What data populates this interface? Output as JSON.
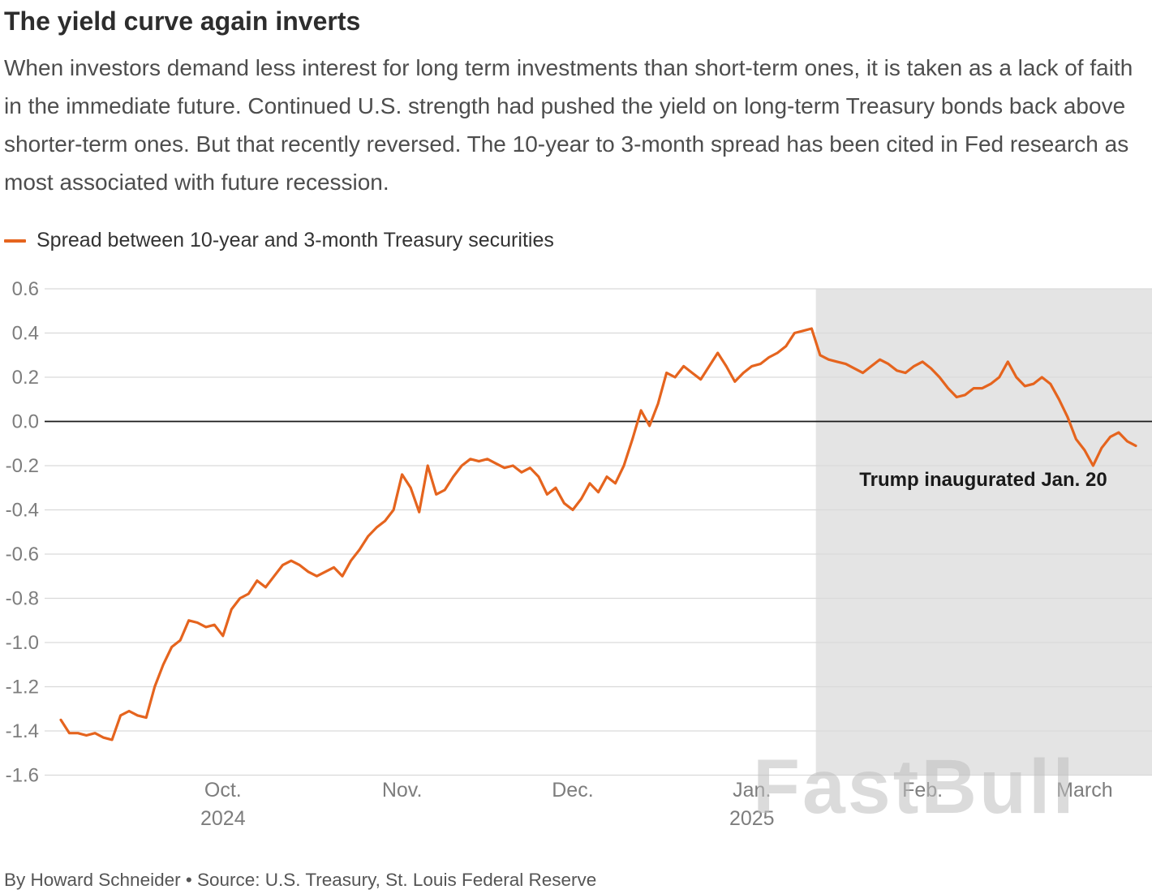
{
  "header": {
    "title": "The yield curve again inverts",
    "description": "When investors demand less interest for long term investments than short-term ones, it is taken as a lack of faith in the immediate future. Continued U.S. strength had pushed the yield on long-term Treasury bonds back above shorter-term ones. But that recently reversed. The 10-year to 3-month spread has been cited in Fed research as most associated with future recession."
  },
  "legend": {
    "label": "Spread between 10-year and 3-month Treasury securities",
    "color": "#E5641E"
  },
  "annotation": {
    "text": "Trump inaugurated Jan. 20"
  },
  "watermark": {
    "text": "FastBull"
  },
  "footer": {
    "text": "By Howard Schneider • Source: U.S. Treasury, St. Louis Federal Reserve"
  },
  "chart_data": {
    "type": "line",
    "title": "The yield curve again inverts",
    "xlabel": "",
    "ylabel": "",
    "ylim": [
      -1.6,
      0.6
    ],
    "grid": true,
    "grid_color": "#d9d9d9",
    "zero_line_color": "#1a1a1a",
    "axis_label_color": "#7d7d7d",
    "y_ticks": [
      "0.6",
      "0.4",
      "0.2",
      "0.0",
      "-0.2",
      "-0.4",
      "-0.6",
      "-0.8",
      "-1.0",
      "-1.2",
      "-1.4",
      "-1.6"
    ],
    "x_ticks": [
      {
        "index": 19,
        "label": "Oct.",
        "year": "2024"
      },
      {
        "index": 40,
        "label": "Nov."
      },
      {
        "index": 60,
        "label": "Dec."
      },
      {
        "index": 81,
        "label": "Jan.",
        "year": "2025"
      },
      {
        "index": 101,
        "label": "Feb."
      },
      {
        "index": 120,
        "label": "March"
      }
    ],
    "shaded_region": {
      "start_index": 88.5,
      "color": "#e4e4e4",
      "label": "Trump inaugurated Jan. 20"
    },
    "series": [
      {
        "name": "Spread between 10-year and 3-month Treasury securities",
        "color": "#E5641E",
        "values": [
          -1.35,
          -1.41,
          -1.41,
          -1.42,
          -1.41,
          -1.43,
          -1.44,
          -1.33,
          -1.31,
          -1.33,
          -1.34,
          -1.2,
          -1.1,
          -1.02,
          -0.99,
          -0.9,
          -0.91,
          -0.93,
          -0.92,
          -0.97,
          -0.85,
          -0.8,
          -0.78,
          -0.72,
          -0.75,
          -0.7,
          -0.65,
          -0.63,
          -0.65,
          -0.68,
          -0.7,
          -0.68,
          -0.66,
          -0.7,
          -0.63,
          -0.58,
          -0.52,
          -0.48,
          -0.45,
          -0.4,
          -0.24,
          -0.3,
          -0.41,
          -0.2,
          -0.33,
          -0.31,
          -0.25,
          -0.2,
          -0.17,
          -0.18,
          -0.17,
          -0.19,
          -0.21,
          -0.2,
          -0.23,
          -0.21,
          -0.25,
          -0.33,
          -0.3,
          -0.37,
          -0.4,
          -0.35,
          -0.28,
          -0.32,
          -0.25,
          -0.28,
          -0.2,
          -0.08,
          0.05,
          -0.02,
          0.08,
          0.22,
          0.2,
          0.25,
          0.22,
          0.19,
          0.25,
          0.31,
          0.25,
          0.18,
          0.22,
          0.25,
          0.26,
          0.29,
          0.31,
          0.34,
          0.4,
          0.41,
          0.42,
          0.3,
          0.28,
          0.27,
          0.26,
          0.24,
          0.22,
          0.25,
          0.28,
          0.26,
          0.23,
          0.22,
          0.25,
          0.27,
          0.24,
          0.2,
          0.15,
          0.11,
          0.12,
          0.15,
          0.15,
          0.17,
          0.2,
          0.27,
          0.2,
          0.16,
          0.17,
          0.2,
          0.17,
          0.1,
          0.02,
          -0.08,
          -0.13,
          -0.2,
          -0.12,
          -0.07,
          -0.05,
          -0.09,
          -0.11
        ]
      }
    ]
  }
}
